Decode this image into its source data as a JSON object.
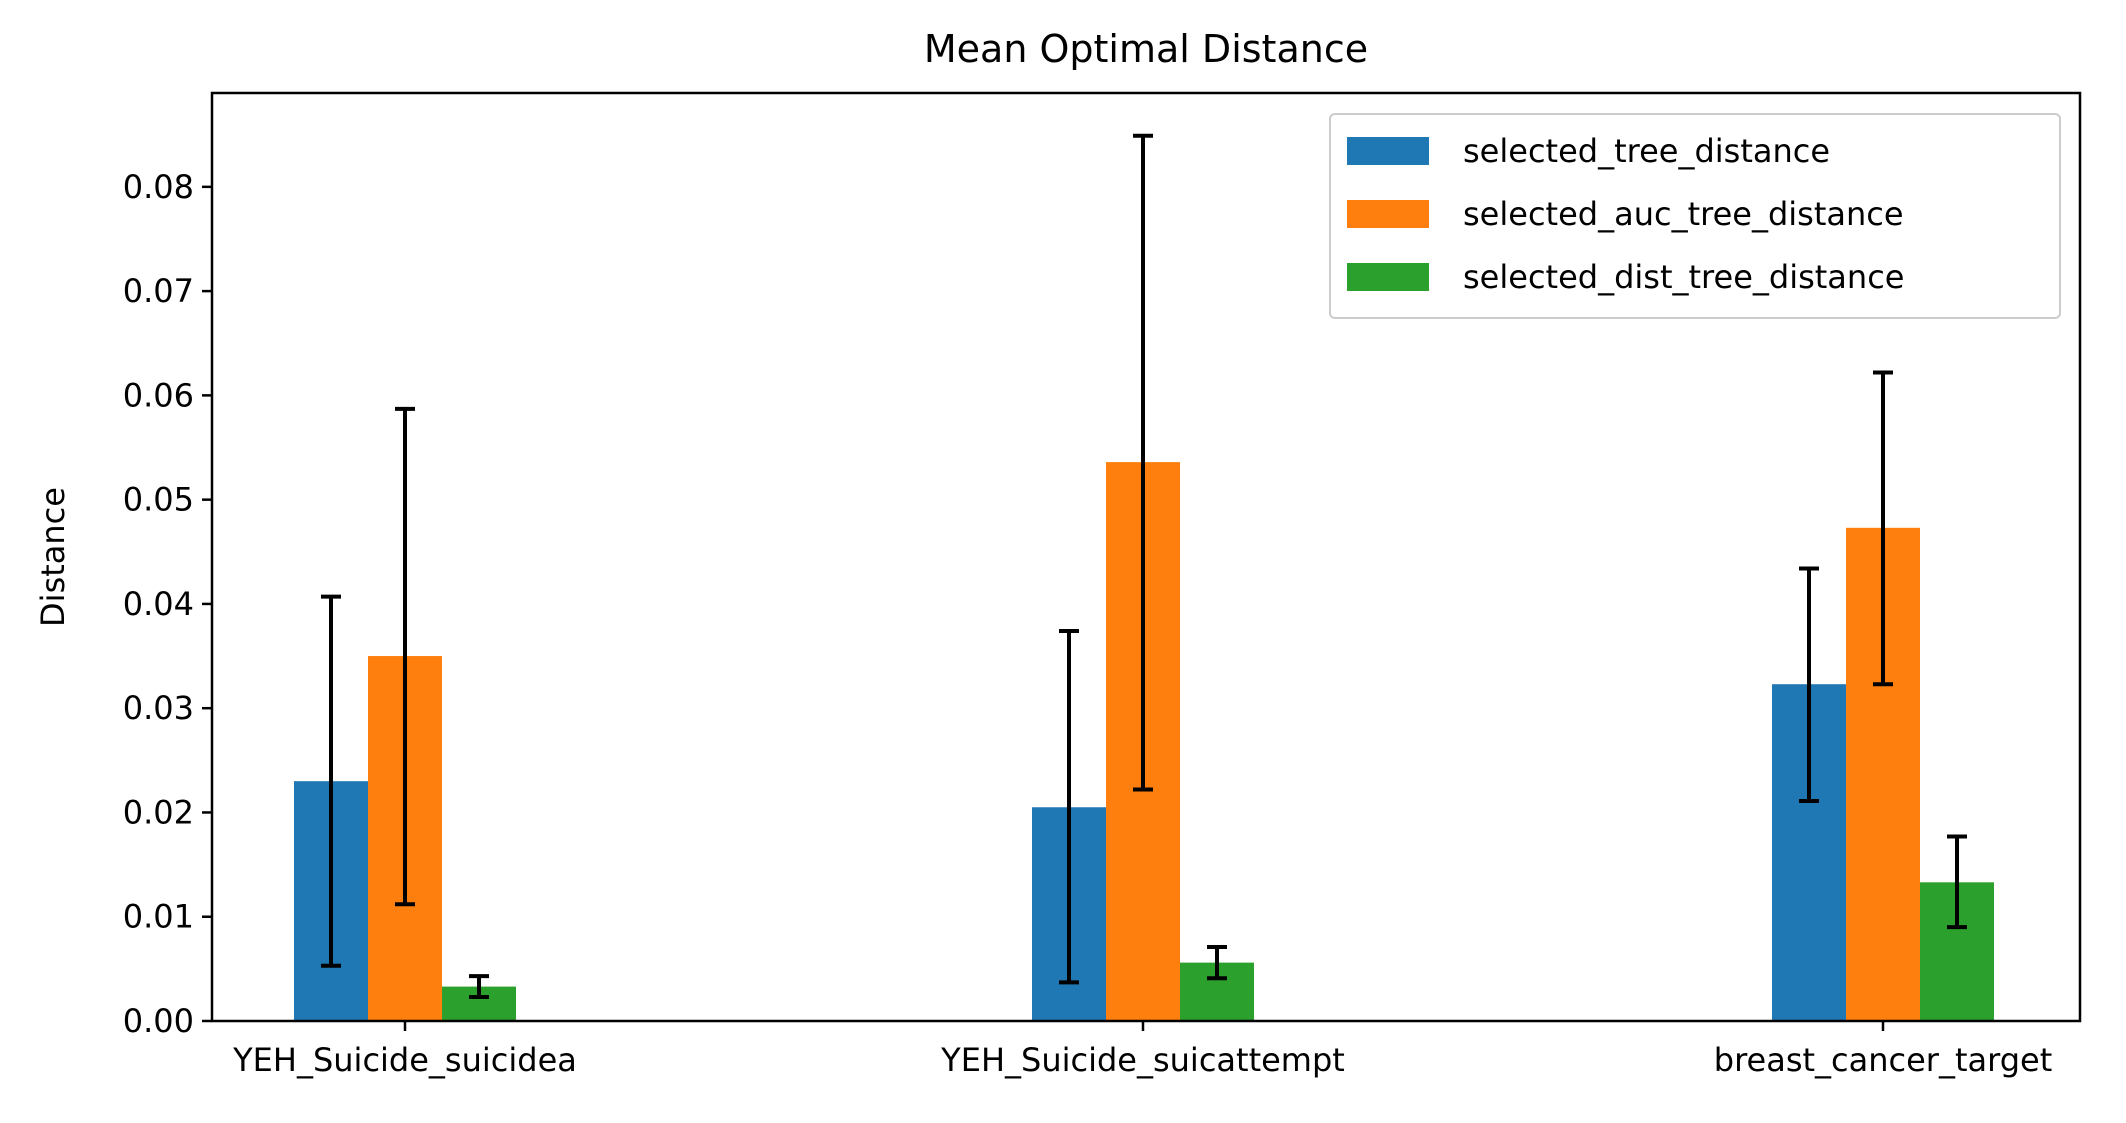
{
  "chart_data": {
    "type": "bar",
    "title": "Mean Optimal Distance",
    "xlabel": "",
    "ylabel": "Distance",
    "categories": [
      "YEH_Suicide_suicidea",
      "YEH_Suicide_suicattempt",
      "breast_cancer_target"
    ],
    "series": [
      {
        "name": "selected_tree_distance",
        "color": "#1f77b4",
        "values": [
          0.023,
          0.0205,
          0.0323
        ],
        "error_low": [
          0.0053,
          0.0037,
          0.0211
        ],
        "error_high": [
          0.0407,
          0.0374,
          0.0434
        ]
      },
      {
        "name": "selected_auc_tree_distance",
        "color": "#ff7f0e",
        "values": [
          0.035,
          0.0536,
          0.0473
        ],
        "error_low": [
          0.0112,
          0.0222,
          0.0323
        ],
        "error_high": [
          0.0587,
          0.0849,
          0.0622
        ]
      },
      {
        "name": "selected_dist_tree_distance",
        "color": "#2ca02c",
        "values": [
          0.0033,
          0.0056,
          0.0133
        ],
        "error_low": [
          0.0023,
          0.0041,
          0.009
        ],
        "error_high": [
          0.0043,
          0.0071,
          0.0177
        ]
      }
    ],
    "ylim": [
      0,
      0.089
    ],
    "yticks": [
      "0.00",
      "0.01",
      "0.02",
      "0.03",
      "0.04",
      "0.05",
      "0.06",
      "0.07",
      "0.08"
    ],
    "grid": false,
    "legend_position": "top-right"
  }
}
